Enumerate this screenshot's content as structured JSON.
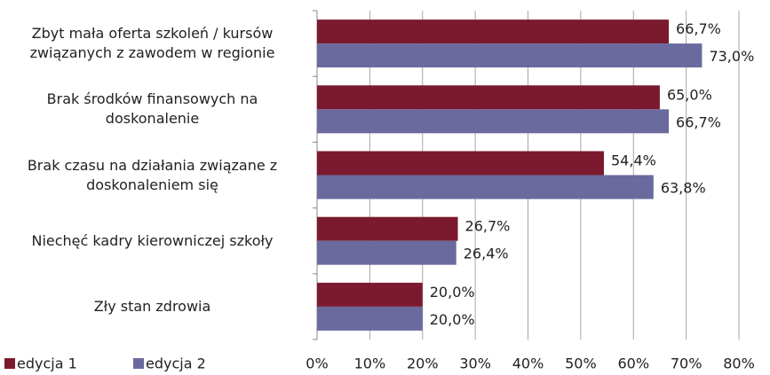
{
  "chart_data": {
    "type": "hbar",
    "categories": [
      "Zbyt mała oferta szkoleń / kursów związanych z zawodem w regionie",
      "Brak środków finansowych na doskonalenie",
      "Brak czasu na działania związane z doskonaleniem się",
      "Niechęć kadry kierowniczej szkoły",
      "Zły stan zdrowia"
    ],
    "series": [
      {
        "name": "edycja 1",
        "color": "#7b1a2e",
        "values": [
          66.7,
          65.0,
          54.4,
          26.7,
          20.0
        ],
        "value_labels": [
          "66,7%",
          "65,0%",
          "54,4%",
          "26,7%",
          "20,0%"
        ]
      },
      {
        "name": "edycja 2",
        "color": "#6a6a9e",
        "values": [
          73.0,
          66.7,
          63.8,
          26.4,
          20.0
        ],
        "value_labels": [
          "73,0%",
          "66,7%",
          "63,8%",
          "26,4%",
          "20,0%"
        ]
      }
    ],
    "xlim": [
      0,
      80
    ],
    "xticks": [
      {
        "value": 0,
        "label": "0%"
      },
      {
        "value": 10,
        "label": "10%"
      },
      {
        "value": 20,
        "label": "20%"
      },
      {
        "value": 30,
        "label": "30%"
      },
      {
        "value": 40,
        "label": "40%"
      },
      {
        "value": 50,
        "label": "50%"
      },
      {
        "value": 60,
        "label": "60%"
      },
      {
        "value": 70,
        "label": "70%"
      },
      {
        "value": 80,
        "label": "80%"
      }
    ],
    "grid": true,
    "legend": "bottom-left"
  }
}
